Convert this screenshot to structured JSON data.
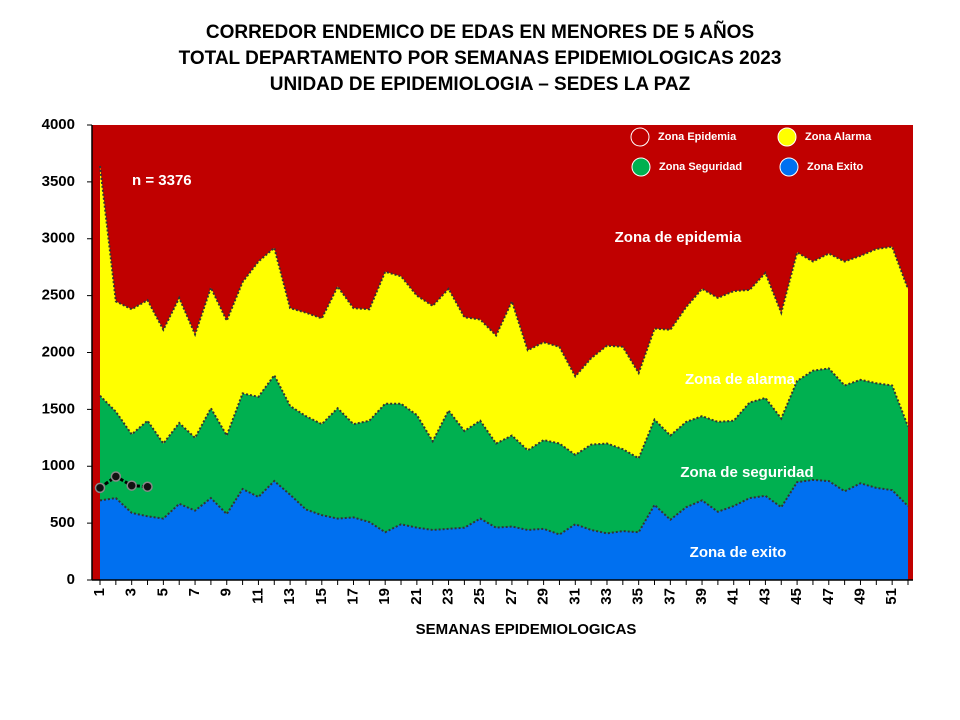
{
  "chart_data": {
    "type": "area",
    "title": [
      "CORREDOR ENDEMICO DE EDAS EN MENORES DE 5 AÑOS",
      "TOTAL DEPARTAMENTO POR SEMANAS EPIDEMIOLOGICAS 2023",
      "UNIDAD DE EPIDEMIOLOGIA – SEDES LA PAZ"
    ],
    "xlabel": "SEMANAS EPIDEMIOLOGICAS",
    "annotations": [
      "n = 3376",
      "Zona de epidemia",
      "Zona de alarma",
      "Zona de  seguridad",
      "Zona de exito"
    ],
    "background_zone": {
      "name": "Zona Epidemia",
      "color": "#c00000"
    },
    "categories": [
      1,
      null,
      3,
      null,
      5,
      null,
      7,
      null,
      9,
      null,
      11,
      null,
      13,
      null,
      15,
      null,
      17,
      null,
      19,
      null,
      21,
      null,
      23,
      null,
      25,
      null,
      27,
      null,
      29,
      null,
      31,
      null,
      33,
      null,
      35,
      null,
      37,
      null,
      39,
      null,
      41,
      null,
      43,
      null,
      45,
      null,
      47,
      null,
      49,
      null,
      51,
      null
    ],
    "series": [
      {
        "name": "Zona Alarma",
        "color": "#ffff00",
        "values": [
          3640,
          2450,
          2380,
          2460,
          2200,
          2480,
          2160,
          2570,
          2280,
          2620,
          2800,
          2920,
          2390,
          2350,
          2300,
          2580,
          2390,
          2380,
          2710,
          2670,
          2500,
          2410,
          2560,
          2310,
          2290,
          2150,
          2450,
          2020,
          2090,
          2050,
          1790,
          1950,
          2060,
          2050,
          1820,
          2210,
          2200,
          2400,
          2560,
          2480,
          2540,
          2550,
          2700,
          2350,
          2880,
          2800,
          2870,
          2800,
          2850,
          2910,
          2930,
          2560
        ]
      },
      {
        "name": "Zona Seguridad",
        "color": "#00b050",
        "values": [
          1620,
          1480,
          1280,
          1400,
          1200,
          1380,
          1250,
          1510,
          1270,
          1640,
          1610,
          1800,
          1530,
          1440,
          1370,
          1510,
          1370,
          1400,
          1550,
          1550,
          1450,
          1220,
          1490,
          1310,
          1400,
          1200,
          1270,
          1140,
          1230,
          1200,
          1100,
          1190,
          1200,
          1150,
          1070,
          1410,
          1270,
          1390,
          1440,
          1390,
          1400,
          1560,
          1600,
          1420,
          1750,
          1840,
          1860,
          1710,
          1760,
          1730,
          1710,
          1350
        ]
      },
      {
        "name": "Zona Exito",
        "color": "#0070f0",
        "values": [
          700,
          720,
          590,
          560,
          540,
          670,
          610,
          720,
          580,
          800,
          730,
          870,
          750,
          620,
          570,
          540,
          550,
          510,
          420,
          490,
          460,
          440,
          450,
          460,
          540,
          460,
          470,
          440,
          450,
          400,
          490,
          440,
          410,
          430,
          420,
          660,
          530,
          640,
          700,
          600,
          650,
          720,
          740,
          640,
          860,
          880,
          870,
          780,
          850,
          810,
          790,
          650
        ]
      },
      {
        "color": "#000000",
        "values": [
          810,
          910,
          830,
          820,
          null,
          null,
          null,
          null,
          null,
          null,
          null,
          null,
          null,
          null,
          null,
          null,
          null,
          null,
          null,
          null,
          null,
          null,
          null,
          null,
          null,
          null,
          null,
          null,
          null,
          null,
          null,
          null,
          null,
          null,
          null,
          null,
          null,
          null,
          null,
          null,
          null,
          null,
          null,
          null,
          null,
          null,
          null,
          null,
          null,
          null,
          null,
          null
        ]
      }
    ],
    "ylim": [
      0,
      4000
    ],
    "yticks": [
      0,
      500,
      1000,
      1500,
      2000,
      2500,
      3000,
      3500,
      4000
    ],
    "grid": false
  }
}
